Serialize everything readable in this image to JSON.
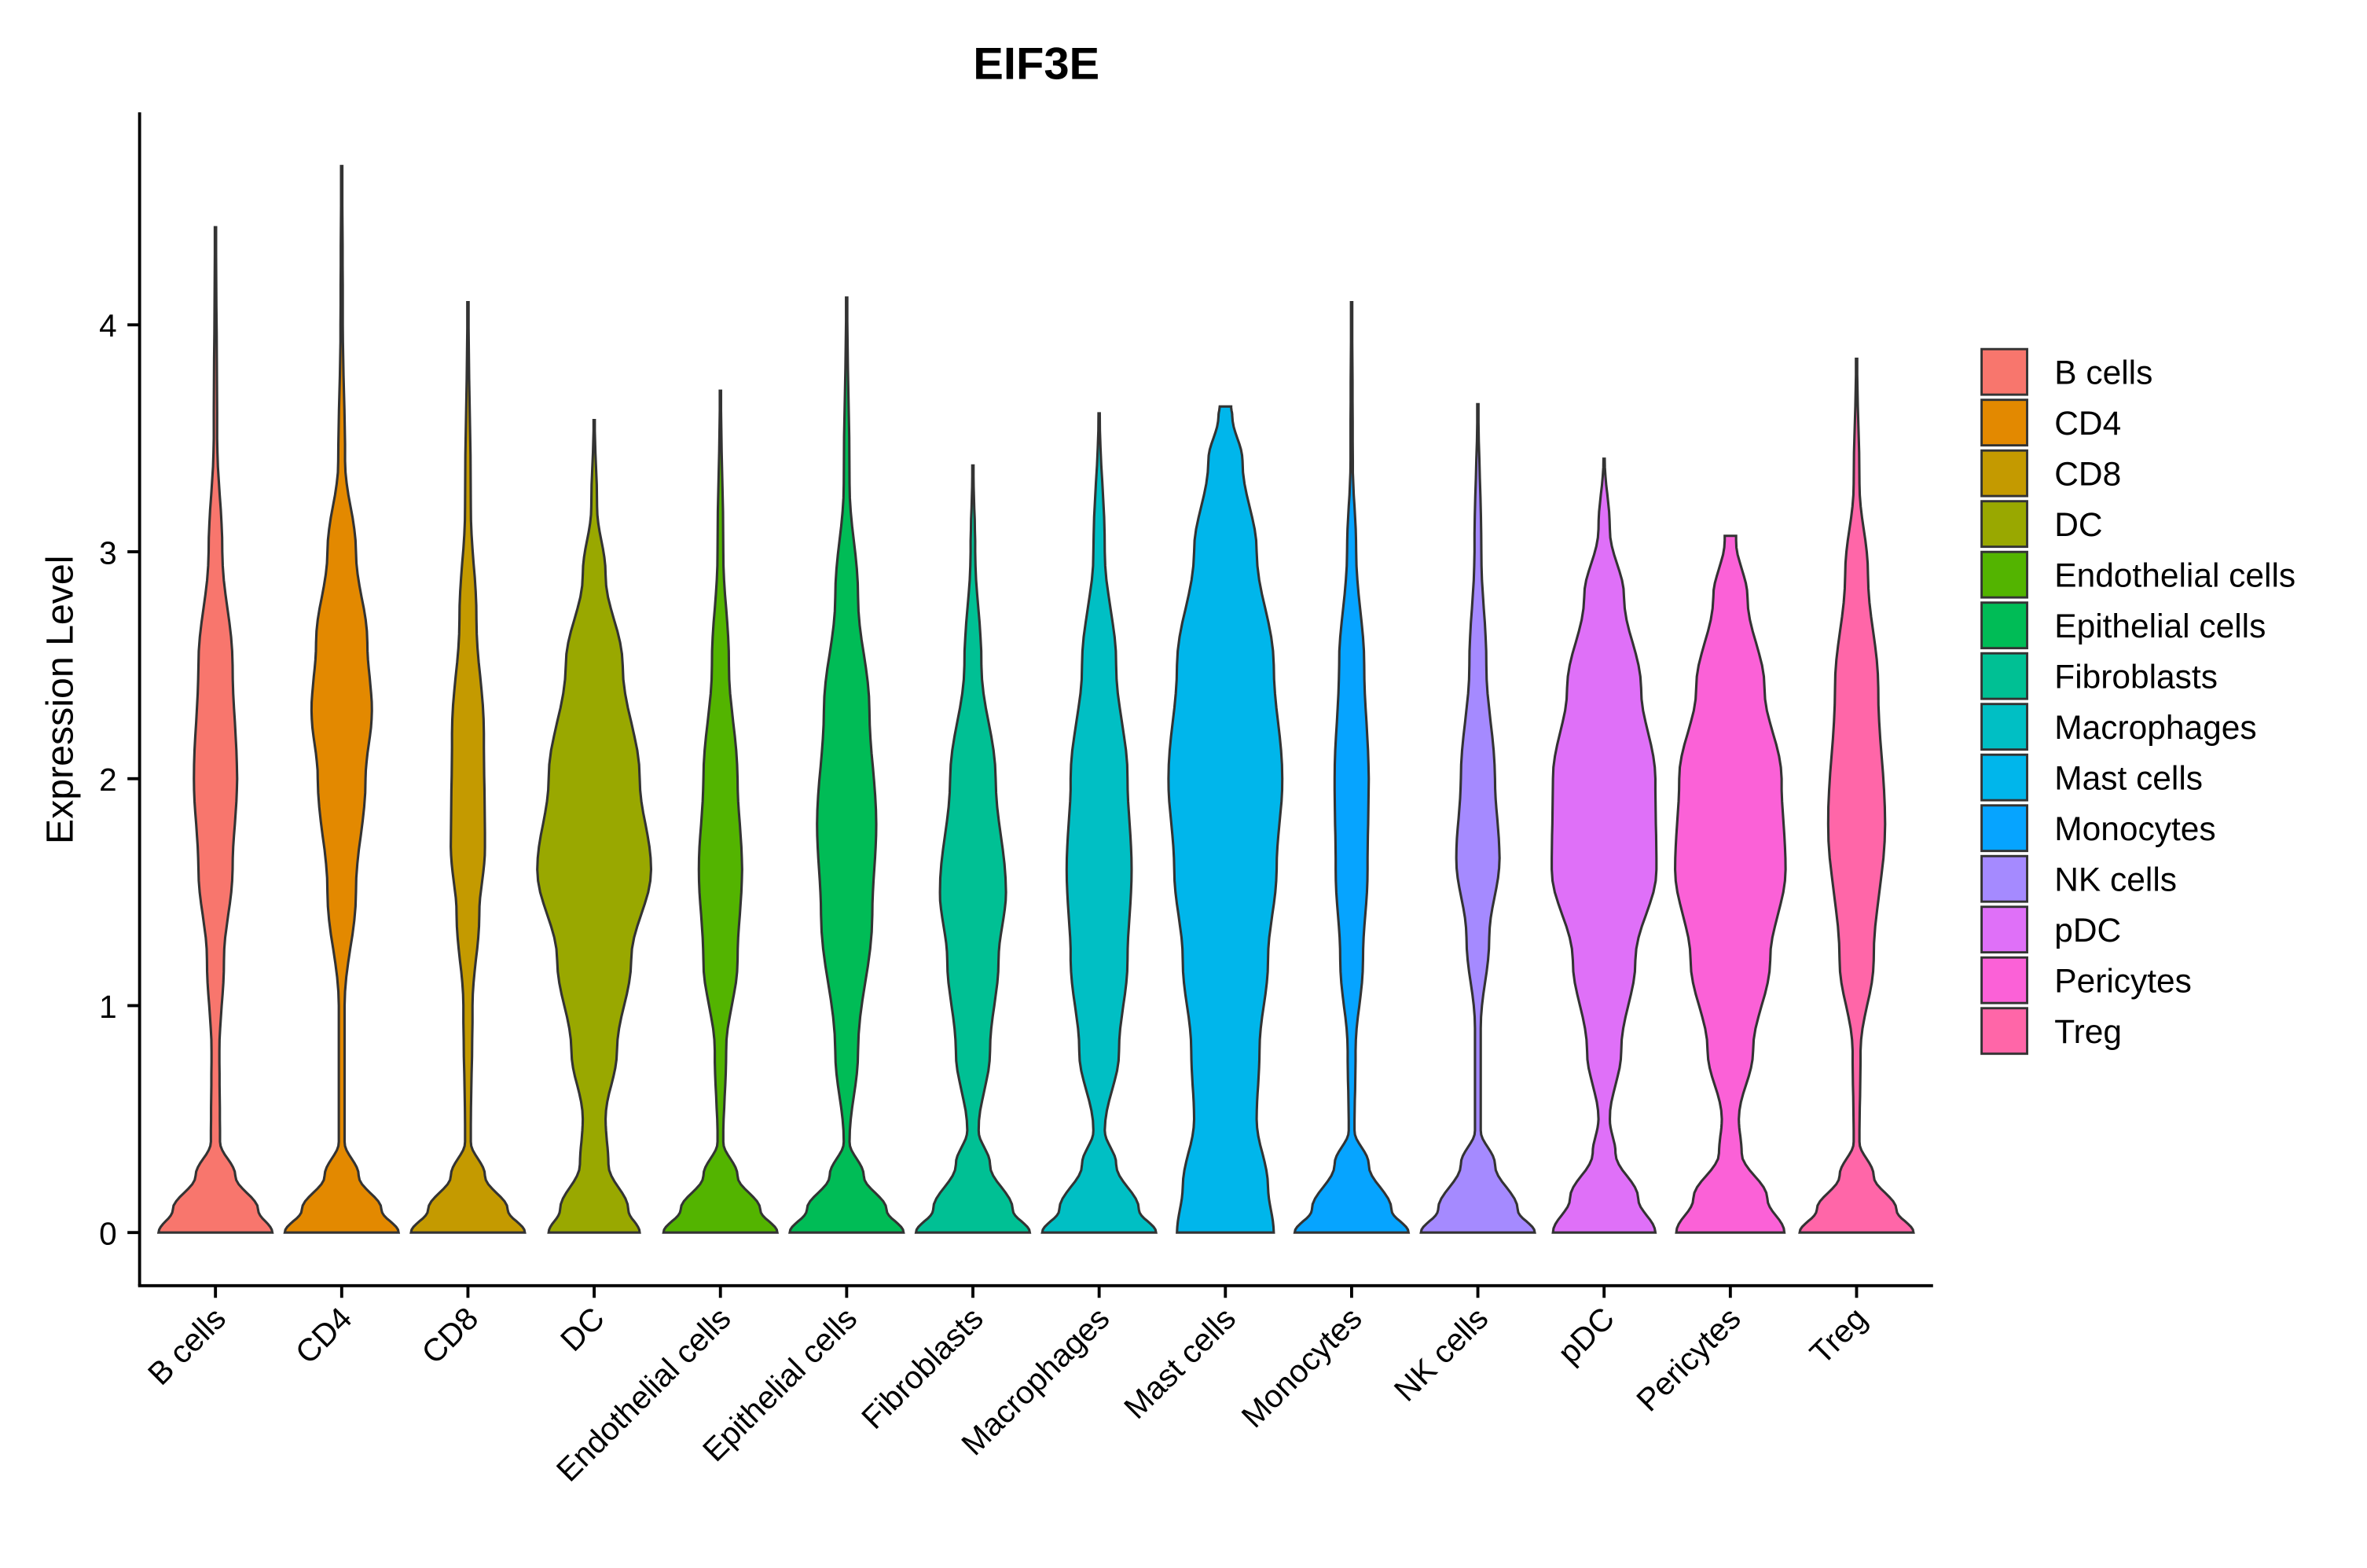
{
  "chart_data": {
    "type": "violin",
    "title": "EIF3E",
    "xlabel": "",
    "ylabel": "Expression Level",
    "ylim": [
      -0.23,
      4.95
    ],
    "yticks": [
      0,
      1,
      2,
      3,
      4
    ],
    "grid": false,
    "legend_position": "right",
    "categories": [
      "B cells",
      "CD4",
      "CD8",
      "DC",
      "Endothelial cells",
      "Epithelial cells",
      "Fibroblasts",
      "Macrophages",
      "Mast cells",
      "Monocytes",
      "NK cells",
      "pDC",
      "Pericytes",
      "Treg"
    ],
    "colors": [
      "#F8766D",
      "#E38900",
      "#C49A00",
      "#99A800",
      "#53B400",
      "#00BC56",
      "#00C094",
      "#00BFC4",
      "#00B6EB",
      "#06A4FF",
      "#A58AFF",
      "#DF70F8",
      "#FB61D7",
      "#FF66A8"
    ],
    "max_values": [
      4.43,
      4.7,
      4.1,
      3.58,
      3.71,
      4.12,
      3.38,
      3.61,
      3.64,
      4.1,
      3.65,
      3.41,
      3.07,
      3.85
    ],
    "density_profiles": [
      [
        [
          0,
          1
        ],
        [
          0.1,
          0.75
        ],
        [
          0.25,
          0.35
        ],
        [
          0.4,
          0.08
        ],
        [
          0.8,
          0.07
        ],
        [
          1.2,
          0.15
        ],
        [
          1.6,
          0.3
        ],
        [
          2.0,
          0.38
        ],
        [
          2.5,
          0.3
        ],
        [
          3.0,
          0.12
        ],
        [
          3.5,
          0.03
        ],
        [
          4.43,
          0.01
        ]
      ],
      [
        [
          0,
          1
        ],
        [
          0.1,
          0.7
        ],
        [
          0.25,
          0.3
        ],
        [
          0.4,
          0.05
        ],
        [
          1.0,
          0.05
        ],
        [
          1.5,
          0.25
        ],
        [
          2.0,
          0.42
        ],
        [
          2.3,
          0.53
        ],
        [
          2.6,
          0.45
        ],
        [
          3.0,
          0.25
        ],
        [
          3.4,
          0.06
        ],
        [
          4.0,
          0.02
        ],
        [
          4.7,
          0.01
        ]
      ],
      [
        [
          0,
          1
        ],
        [
          0.1,
          0.7
        ],
        [
          0.25,
          0.3
        ],
        [
          0.4,
          0.05
        ],
        [
          1.0,
          0.08
        ],
        [
          1.4,
          0.2
        ],
        [
          1.7,
          0.3
        ],
        [
          2.2,
          0.28
        ],
        [
          2.7,
          0.15
        ],
        [
          3.2,
          0.05
        ],
        [
          4.1,
          0.01
        ]
      ],
      [
        [
          0,
          0.8
        ],
        [
          0.1,
          0.6
        ],
        [
          0.3,
          0.25
        ],
        [
          0.5,
          0.2
        ],
        [
          0.8,
          0.4
        ],
        [
          1.2,
          0.65
        ],
        [
          1.6,
          1.0
        ],
        [
          2.0,
          0.8
        ],
        [
          2.5,
          0.5
        ],
        [
          2.9,
          0.2
        ],
        [
          3.2,
          0.05
        ],
        [
          3.58,
          0.01
        ]
      ],
      [
        [
          0,
          1
        ],
        [
          0.1,
          0.7
        ],
        [
          0.25,
          0.3
        ],
        [
          0.4,
          0.05
        ],
        [
          0.8,
          0.1
        ],
        [
          1.2,
          0.3
        ],
        [
          1.6,
          0.38
        ],
        [
          2.0,
          0.3
        ],
        [
          2.5,
          0.15
        ],
        [
          3.0,
          0.05
        ],
        [
          3.71,
          0.01
        ]
      ],
      [
        [
          0,
          1
        ],
        [
          0.1,
          0.7
        ],
        [
          0.25,
          0.3
        ],
        [
          0.4,
          0.05
        ],
        [
          0.8,
          0.2
        ],
        [
          1.4,
          0.45
        ],
        [
          1.8,
          0.52
        ],
        [
          2.3,
          0.4
        ],
        [
          2.8,
          0.2
        ],
        [
          3.3,
          0.05
        ],
        [
          4.12,
          0.01
        ]
      ],
      [
        [
          0,
          1
        ],
        [
          0.1,
          0.7
        ],
        [
          0.3,
          0.3
        ],
        [
          0.45,
          0.1
        ],
        [
          0.8,
          0.3
        ],
        [
          1.2,
          0.45
        ],
        [
          1.5,
          0.58
        ],
        [
          2.0,
          0.4
        ],
        [
          2.5,
          0.15
        ],
        [
          3.0,
          0.04
        ],
        [
          3.38,
          0.01
        ]
      ],
      [
        [
          0,
          1
        ],
        [
          0.1,
          0.7
        ],
        [
          0.3,
          0.3
        ],
        [
          0.45,
          0.1
        ],
        [
          0.8,
          0.35
        ],
        [
          1.2,
          0.5
        ],
        [
          1.6,
          0.57
        ],
        [
          2.0,
          0.5
        ],
        [
          2.5,
          0.3
        ],
        [
          3.0,
          0.1
        ],
        [
          3.61,
          0.01
        ]
      ],
      [
        [
          0,
          0.85
        ],
        [
          0.2,
          0.75
        ],
        [
          0.5,
          0.55
        ],
        [
          0.8,
          0.6
        ],
        [
          1.2,
          0.75
        ],
        [
          1.6,
          0.9
        ],
        [
          2.0,
          1.0
        ],
        [
          2.5,
          0.85
        ],
        [
          3.0,
          0.55
        ],
        [
          3.4,
          0.3
        ],
        [
          3.6,
          0.12
        ],
        [
          3.64,
          0.1
        ]
      ],
      [
        [
          0,
          1
        ],
        [
          0.1,
          0.7
        ],
        [
          0.3,
          0.3
        ],
        [
          0.45,
          0.05
        ],
        [
          0.8,
          0.07
        ],
        [
          1.2,
          0.2
        ],
        [
          1.6,
          0.28
        ],
        [
          2.0,
          0.3
        ],
        [
          2.5,
          0.22
        ],
        [
          3.0,
          0.08
        ],
        [
          3.4,
          0.02
        ],
        [
          4.1,
          0.01
        ]
      ],
      [
        [
          0,
          1
        ],
        [
          0.1,
          0.7
        ],
        [
          0.3,
          0.3
        ],
        [
          0.45,
          0.05
        ],
        [
          0.9,
          0.05
        ],
        [
          1.3,
          0.2
        ],
        [
          1.65,
          0.38
        ],
        [
          2.0,
          0.3
        ],
        [
          2.5,
          0.15
        ],
        [
          3.0,
          0.06
        ],
        [
          3.65,
          0.01
        ]
      ],
      [
        [
          0,
          0.9
        ],
        [
          0.15,
          0.6
        ],
        [
          0.35,
          0.2
        ],
        [
          0.5,
          0.1
        ],
        [
          0.8,
          0.3
        ],
        [
          1.2,
          0.55
        ],
        [
          1.6,
          0.92
        ],
        [
          2.0,
          0.9
        ],
        [
          2.4,
          0.65
        ],
        [
          2.8,
          0.35
        ],
        [
          3.1,
          0.1
        ],
        [
          3.41,
          0.01
        ]
      ],
      [
        [
          0,
          0.95
        ],
        [
          0.15,
          0.65
        ],
        [
          0.35,
          0.2
        ],
        [
          0.5,
          0.15
        ],
        [
          0.8,
          0.4
        ],
        [
          1.2,
          0.7
        ],
        [
          1.6,
          0.97
        ],
        [
          2.0,
          0.9
        ],
        [
          2.4,
          0.6
        ],
        [
          2.8,
          0.3
        ],
        [
          3.05,
          0.1
        ],
        [
          3.07,
          0.1
        ]
      ],
      [
        [
          0,
          1
        ],
        [
          0.1,
          0.7
        ],
        [
          0.25,
          0.3
        ],
        [
          0.4,
          0.05
        ],
        [
          0.8,
          0.07
        ],
        [
          1.2,
          0.3
        ],
        [
          1.8,
          0.5
        ],
        [
          2.4,
          0.38
        ],
        [
          2.9,
          0.2
        ],
        [
          3.3,
          0.05
        ],
        [
          3.85,
          0.01
        ]
      ]
    ]
  }
}
